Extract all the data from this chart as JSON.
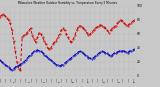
{
  "title": "Milwaukee Weather Outdoor Humidity vs. Temperature Every 5 Minutes",
  "background_color": "#c8c8c8",
  "grid_color": "#aaaaaa",
  "red_line_color": "#cc0000",
  "blue_line_color": "#0000bb",
  "temp_values": [
    85,
    87,
    88,
    86,
    83,
    80,
    75,
    65,
    50,
    35,
    20,
    10,
    8,
    55,
    58,
    60,
    62,
    65,
    68,
    58,
    52,
    48,
    55,
    62,
    60,
    55,
    50,
    45,
    40,
    38,
    40,
    45,
    48,
    50,
    55,
    60,
    65,
    68,
    65,
    60,
    55,
    50,
    48,
    52,
    58,
    65,
    70,
    72,
    70,
    68,
    65,
    62,
    58,
    60,
    63,
    65,
    68,
    70,
    72,
    73,
    72,
    70,
    68,
    65,
    62,
    65,
    68,
    70,
    72,
    75,
    78,
    80,
    78,
    75,
    73,
    72,
    74,
    76,
    78,
    80
  ],
  "hum_values": [
    22,
    20,
    18,
    16,
    14,
    12,
    10,
    8,
    10,
    12,
    14,
    15,
    16,
    18,
    20,
    22,
    25,
    28,
    30,
    32,
    35,
    36,
    37,
    36,
    35,
    33,
    30,
    28,
    26,
    24,
    22,
    20,
    18,
    16,
    15,
    14,
    15,
    16,
    18,
    20,
    22,
    24,
    26,
    28,
    30,
    32,
    34,
    35,
    34,
    32,
    30,
    28,
    26,
    25,
    24,
    26,
    28,
    30,
    32,
    34,
    35,
    34,
    33,
    32,
    30,
    28,
    30,
    32,
    33,
    34,
    35,
    36,
    36,
    35,
    34,
    33,
    35,
    36,
    37,
    38
  ],
  "n_points": 80,
  "ylim": [
    0,
    100
  ],
  "figsize": [
    1.6,
    0.87
  ],
  "dpi": 100
}
